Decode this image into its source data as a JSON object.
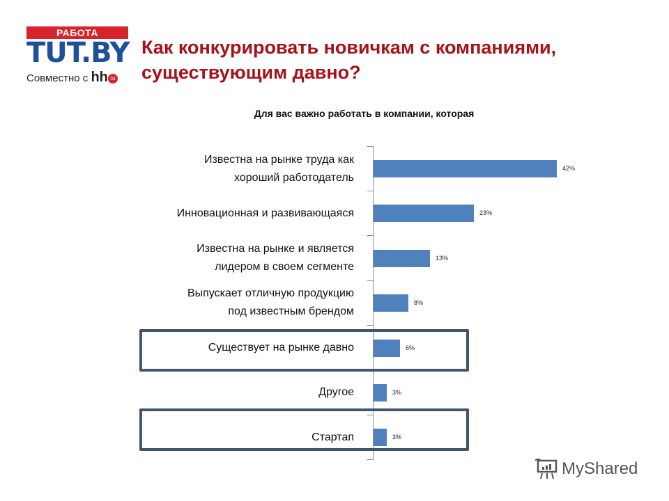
{
  "logo": {
    "top": "РАБОТА",
    "main": "TUT.BY",
    "sub": "Совместно с",
    "hh": "hh",
    "ru": "ru"
  },
  "header": {
    "title_line1": "Как конкурировать новичкам с компаниями,",
    "title_line2": "существующим давно?"
  },
  "watermark": {
    "text": "MyShared"
  },
  "chart_data": {
    "type": "bar",
    "orientation": "horizontal",
    "title": "Для вас важно работать в компании, которая",
    "categories": [
      "Известна на рынке труда как хороший работодатель",
      "Инновационная и развивающаяся",
      "Известна на рынке и является лидером в своем сегменте",
      "Выпускает отличную продукцию под известным брендом",
      "Существует на рынке давно",
      "Другое",
      "Стартап"
    ],
    "values": [
      42,
      23,
      13,
      8,
      6,
      3,
      3
    ],
    "value_labels": [
      "42%",
      "23%",
      "13%",
      "8%",
      "6%",
      "3%",
      "3%"
    ],
    "highlighted": [
      "Существует на рынке давно",
      "Стартап"
    ],
    "bar_color": "#4f81bd",
    "highlight_color": "#41566e",
    "xlabel": "",
    "ylabel": "",
    "grid": false
  },
  "labels": {
    "c0a": "Известна на рынке труда как",
    "c0b": "хороший работодатель",
    "c1a": "Инновационная  и развивающаяся",
    "c2a": "Известна на рынке и является",
    "c2b": "лидером в своем  сегменте",
    "c3a": "Выпускает отличную продукцию",
    "c3b": "под известным  брендом",
    "c4a": "Существует на рынке давно",
    "c5a": "Другое",
    "c6a": "Стартап"
  }
}
